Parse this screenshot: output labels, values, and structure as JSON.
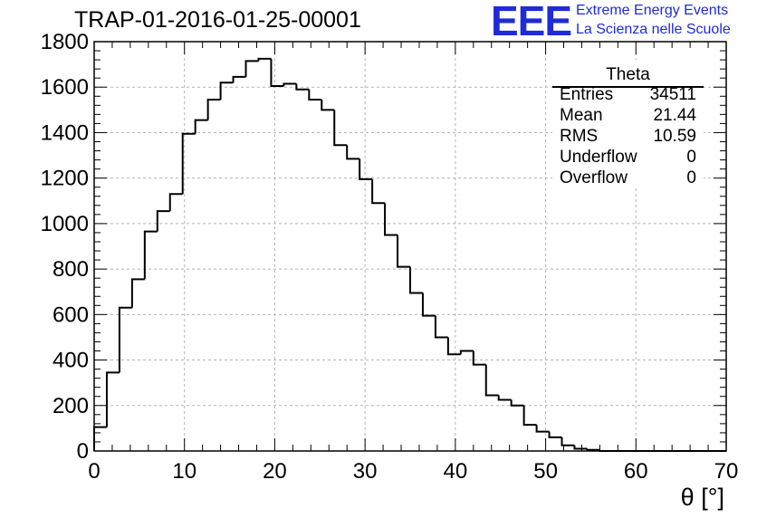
{
  "header": {
    "title": "TRAP-01-2016-01-25-00001"
  },
  "logo": {
    "mark": "EEE",
    "line1": "Extreme Energy Events",
    "line2": "La Scienza nelle Scuole",
    "color": "#1f2bd6"
  },
  "stats_box": {
    "name": "Theta",
    "rows": [
      {
        "label": "Entries",
        "value": "34511"
      },
      {
        "label": "Mean",
        "value": "21.44"
      },
      {
        "label": "RMS",
        "value": "10.59"
      },
      {
        "label": "Underflow",
        "value": "0"
      },
      {
        "label": "Overflow",
        "value": "0"
      }
    ]
  },
  "chart_data": {
    "type": "bar",
    "style": "step-histogram",
    "title": "TRAP-01-2016-01-25-00001",
    "xlabel": "θ [°]",
    "ylabel": "",
    "xlim": [
      0,
      70
    ],
    "ylim": [
      0,
      1800
    ],
    "grid": true,
    "bin_width": 1.4,
    "bin_start": 0,
    "x_ticks": [
      0,
      10,
      20,
      30,
      40,
      50,
      60,
      70
    ],
    "y_ticks": [
      0,
      200,
      400,
      600,
      800,
      1000,
      1200,
      1400,
      1600,
      1800
    ],
    "values": [
      105,
      345,
      630,
      755,
      965,
      1055,
      1130,
      1395,
      1455,
      1545,
      1620,
      1645,
      1715,
      1725,
      1605,
      1615,
      1590,
      1545,
      1500,
      1345,
      1285,
      1195,
      1090,
      950,
      810,
      695,
      595,
      500,
      425,
      440,
      380,
      245,
      225,
      200,
      115,
      85,
      60,
      25,
      10,
      5,
      0,
      0,
      0,
      0,
      0,
      0,
      0,
      0,
      0,
      0
    ],
    "line_color": "#000000",
    "grid_color": "#b4b4b4"
  }
}
